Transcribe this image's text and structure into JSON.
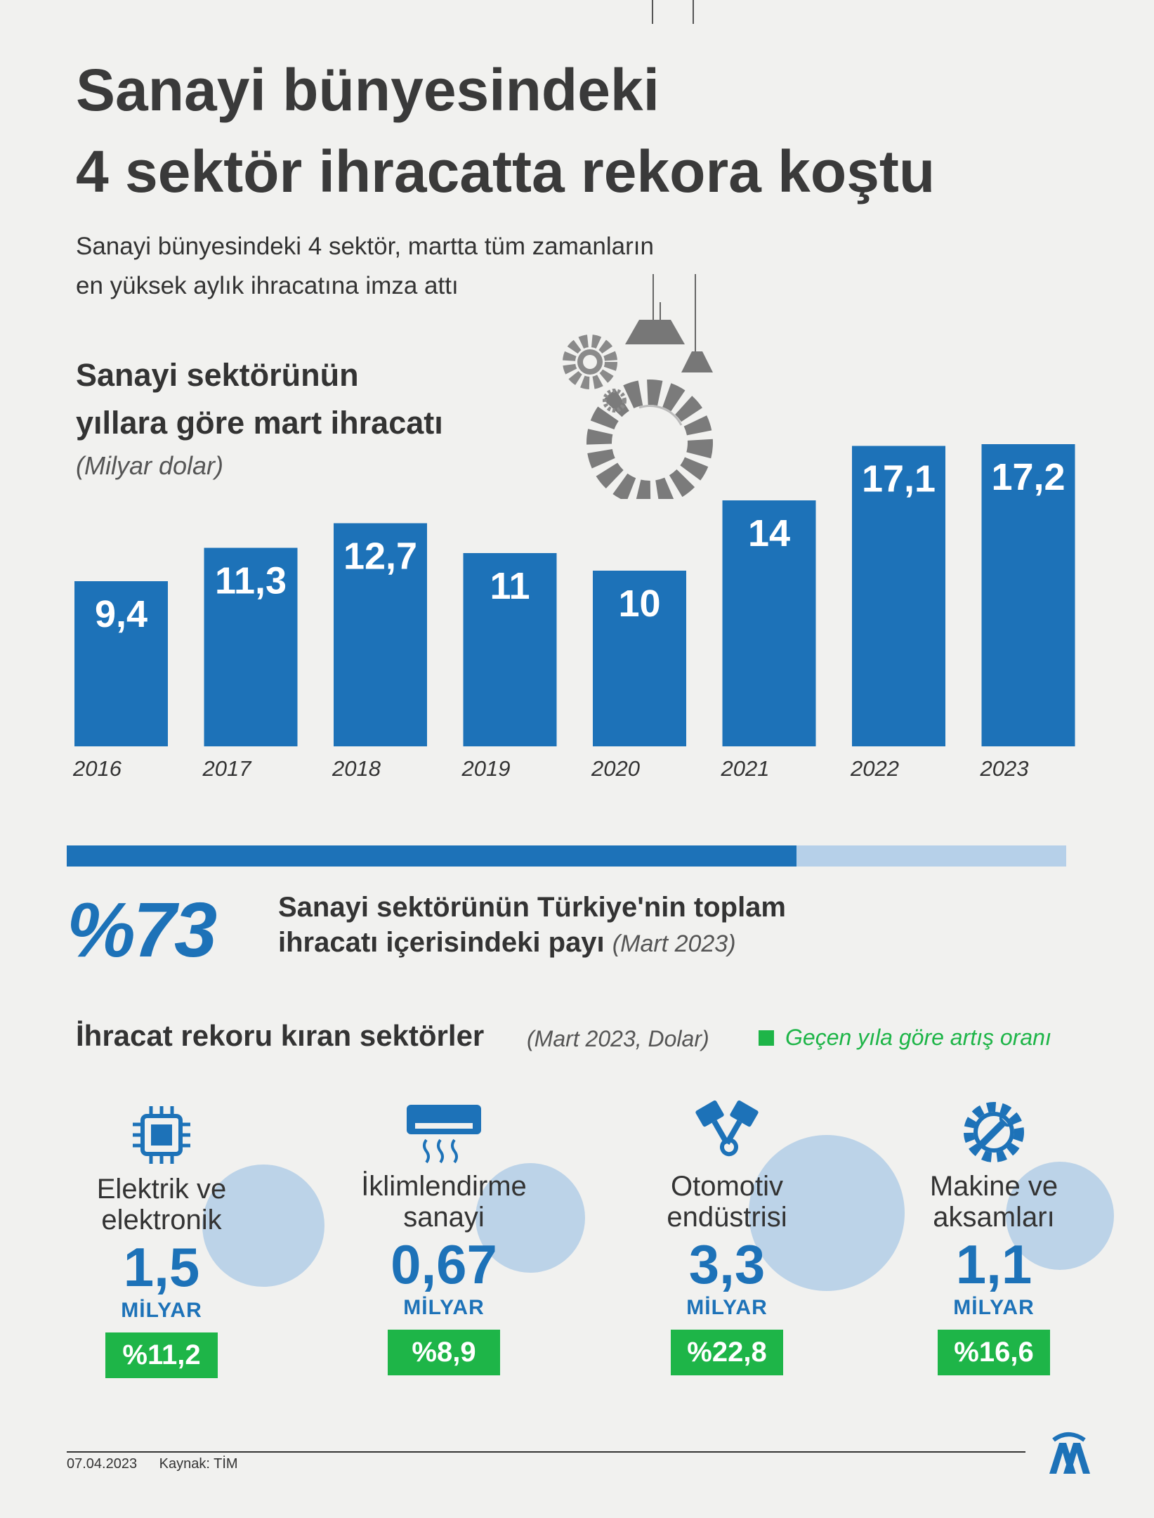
{
  "header": {
    "title_line1": "Sanayi bünyesindeki",
    "title_line2": "4 sektör ihracatta rekora koştu",
    "subtitle_line1": "Sanayi bünyesindeki 4 sektör, martta tüm zamanların",
    "subtitle_line2": "en yüksek aylık ihracatına imza attı"
  },
  "chart_header": {
    "title_line1": "Sanayi sektörünün",
    "title_line2": "yıllara göre mart ihracatı",
    "unit": "(Milyar dolar)"
  },
  "chart_data": {
    "type": "bar",
    "title": "Sanayi sektörünün yıllara göre mart ihracatı",
    "ylabel": "(Milyar dolar)",
    "categories": [
      "2016",
      "2017",
      "2018",
      "2019",
      "2020",
      "2021",
      "2022",
      "2023"
    ],
    "values": [
      9.4,
      11.3,
      12.7,
      11,
      10,
      14,
      17.1,
      17.2
    ],
    "labels": [
      "9,4",
      "11,3",
      "12,7",
      "11",
      "10",
      "14",
      "17,1",
      "17,2"
    ],
    "color": "#1d72b8",
    "grid": false
  },
  "share": {
    "value": "%73",
    "fraction": 0.73,
    "desc_line1": "Sanayi sektörünün Türkiye'nin toplam",
    "desc_line2": "ihracatı içerisindeki payı",
    "desc_note": "(Mart 2023)"
  },
  "sectors": {
    "title": "İhracat rekoru kıran sektörler",
    "note": "(Mart 2023, Dolar)",
    "legend": "Geçen yıla göre artış oranı",
    "legend_color": "#1eb548",
    "items": [
      {
        "name_line1": "Elektrik ve",
        "name_line2": "elektronik",
        "value": "1,5",
        "unit": "MİLYAR",
        "change": "%11,2",
        "icon": "chip-icon"
      },
      {
        "name_line1": "İklimlendirme",
        "name_line2": "sanayi",
        "value": "0,67",
        "unit": "MİLYAR",
        "change": "%8,9",
        "icon": "air-conditioner-icon"
      },
      {
        "name_line1": "Otomotiv",
        "name_line2": "endüstrisi",
        "value": "3,3",
        "unit": "MİLYAR",
        "change": "%22,8",
        "icon": "piston-icon"
      },
      {
        "name_line1": "Makine ve",
        "name_line2": "aksamları",
        "value": "1,1",
        "unit": "MİLYAR",
        "change": "%16,6",
        "icon": "gear-wrench-icon"
      }
    ]
  },
  "footer": {
    "date": "07.04.2023",
    "source": "Kaynak: TİM"
  }
}
